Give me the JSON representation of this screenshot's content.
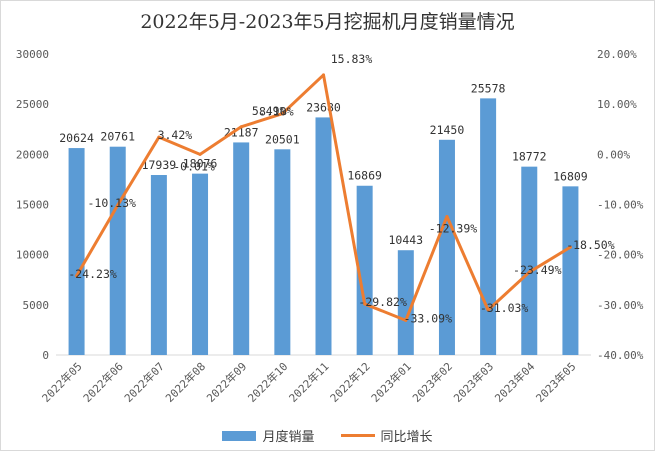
{
  "chart_data": {
    "type": "bar",
    "title": "2022年5月-2023年5月挖掘机月度销量情况",
    "categories": [
      "2022年05",
      "2022年06",
      "2022年07",
      "2022年08",
      "2022年09",
      "2022年10",
      "2022年11",
      "2022年12",
      "2023年01",
      "2023年02",
      "2023年03",
      "2023年04",
      "2023年05"
    ],
    "series": [
      {
        "name": "月度销量",
        "type": "bar",
        "axis": "left",
        "color": "#5b9bd5",
        "values": [
          20624,
          20761,
          17939,
          18076,
          21187,
          20501,
          23680,
          16869,
          10443,
          21450,
          25578,
          18772,
          16809
        ],
        "labels": [
          "20624",
          "20761",
          "17939",
          "18076",
          "21187",
          "20501",
          "23680",
          "16869",
          "10443",
          "21450",
          "25578",
          "18772",
          "16809"
        ]
      },
      {
        "name": "同比增长",
        "type": "line",
        "axis": "right",
        "color": "#ed7d31",
        "values": [
          -24.23,
          -10.13,
          3.42,
          -0.01,
          5.49,
          8.1,
          15.83,
          -29.82,
          -33.09,
          -12.39,
          -31.03,
          -23.49,
          -18.5
        ],
        "labels": [
          "-24.23%",
          "-10.13%",
          "3.42%",
          "-0.01%",
          "5.49%",
          "8.10%",
          "15.83%",
          "-29.82%",
          "-33.09%",
          "-12.39%",
          "-31.03%",
          "-23.49%",
          "-18.50%"
        ]
      }
    ],
    "left_axis": {
      "ylim": [
        0,
        30000
      ],
      "ticks": [
        "0",
        "5000",
        "10000",
        "15000",
        "20000",
        "25000",
        "30000"
      ]
    },
    "right_axis": {
      "ylim": [
        -40,
        20
      ],
      "ticks": [
        "-40.00%",
        "-30.00%",
        "-20.00%",
        "-10.00%",
        "0.00%",
        "10.00%",
        "20.00%"
      ]
    },
    "grid": false,
    "legend_position": "bottom"
  }
}
